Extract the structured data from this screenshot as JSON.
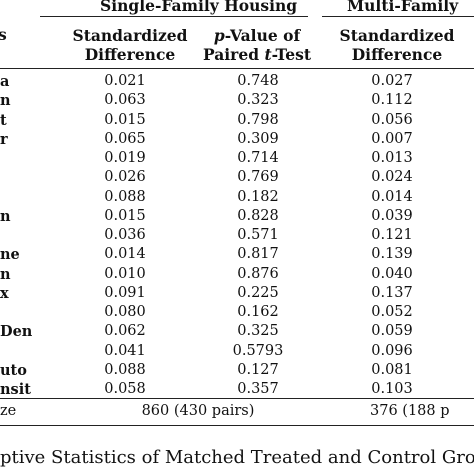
{
  "header": {
    "single_family": "Single-Family Housing",
    "multi_family": "Multi-Family",
    "var_col_fragment": "s",
    "std_diff": [
      "Standardized",
      "Difference"
    ],
    "pvalue": [
      "p-Value of",
      "Paired t-Test"
    ],
    "std_diff_2": [
      "Standardized",
      "Difference"
    ]
  },
  "rows": [
    {
      "label": "a",
      "sd_sf": "0.021",
      "p_sf": "0.748",
      "sd_mf": "0.027"
    },
    {
      "label": "n",
      "sd_sf": "0.063",
      "p_sf": "0.323",
      "sd_mf": "0.112"
    },
    {
      "label": "t",
      "sd_sf": "0.015",
      "p_sf": "0.798",
      "sd_mf": "0.056"
    },
    {
      "label": "r",
      "sd_sf": "0.065",
      "p_sf": "0.309",
      "sd_mf": "0.007"
    },
    {
      "label": "",
      "sd_sf": "0.019",
      "p_sf": "0.714",
      "sd_mf": "0.013"
    },
    {
      "label": "",
      "sd_sf": "0.026",
      "p_sf": "0.769",
      "sd_mf": "0.024"
    },
    {
      "label": "",
      "sd_sf": "0.088",
      "p_sf": "0.182",
      "sd_mf": "0.014"
    },
    {
      "label": "n",
      "sd_sf": "0.015",
      "p_sf": "0.828",
      "sd_mf": "0.039"
    },
    {
      "label": "",
      "sd_sf": "0.036",
      "p_sf": "0.571",
      "sd_mf": "0.121"
    },
    {
      "label": "ne",
      "sd_sf": "0.014",
      "p_sf": "0.817",
      "sd_mf": "0.139"
    },
    {
      "label": "n",
      "sd_sf": "0.010",
      "p_sf": "0.876",
      "sd_mf": "0.040"
    },
    {
      "label": "x",
      "sd_sf": "0.091",
      "p_sf": "0.225",
      "sd_mf": "0.137"
    },
    {
      "label": "",
      "sd_sf": "0.080",
      "p_sf": "0.162",
      "sd_mf": "0.052"
    },
    {
      "label": "Den",
      "sd_sf": "0.062",
      "p_sf": "0.325",
      "sd_mf": "0.059"
    },
    {
      "label": "",
      "sd_sf": "0.041",
      "p_sf": "0.5793",
      "sd_mf": "0.096"
    },
    {
      "label": "uto",
      "sd_sf": "0.088",
      "p_sf": "0.127",
      "sd_mf": "0.081"
    },
    {
      "label": "nsit",
      "sd_sf": "0.058",
      "p_sf": "0.357",
      "sd_mf": "0.103"
    }
  ],
  "sample_size": {
    "label": "ze",
    "single_family": "860 (430 pairs)",
    "multi_family": "376 (188 p"
  },
  "caption": "ptive Statistics of Matched Treated and Control Groups"
}
